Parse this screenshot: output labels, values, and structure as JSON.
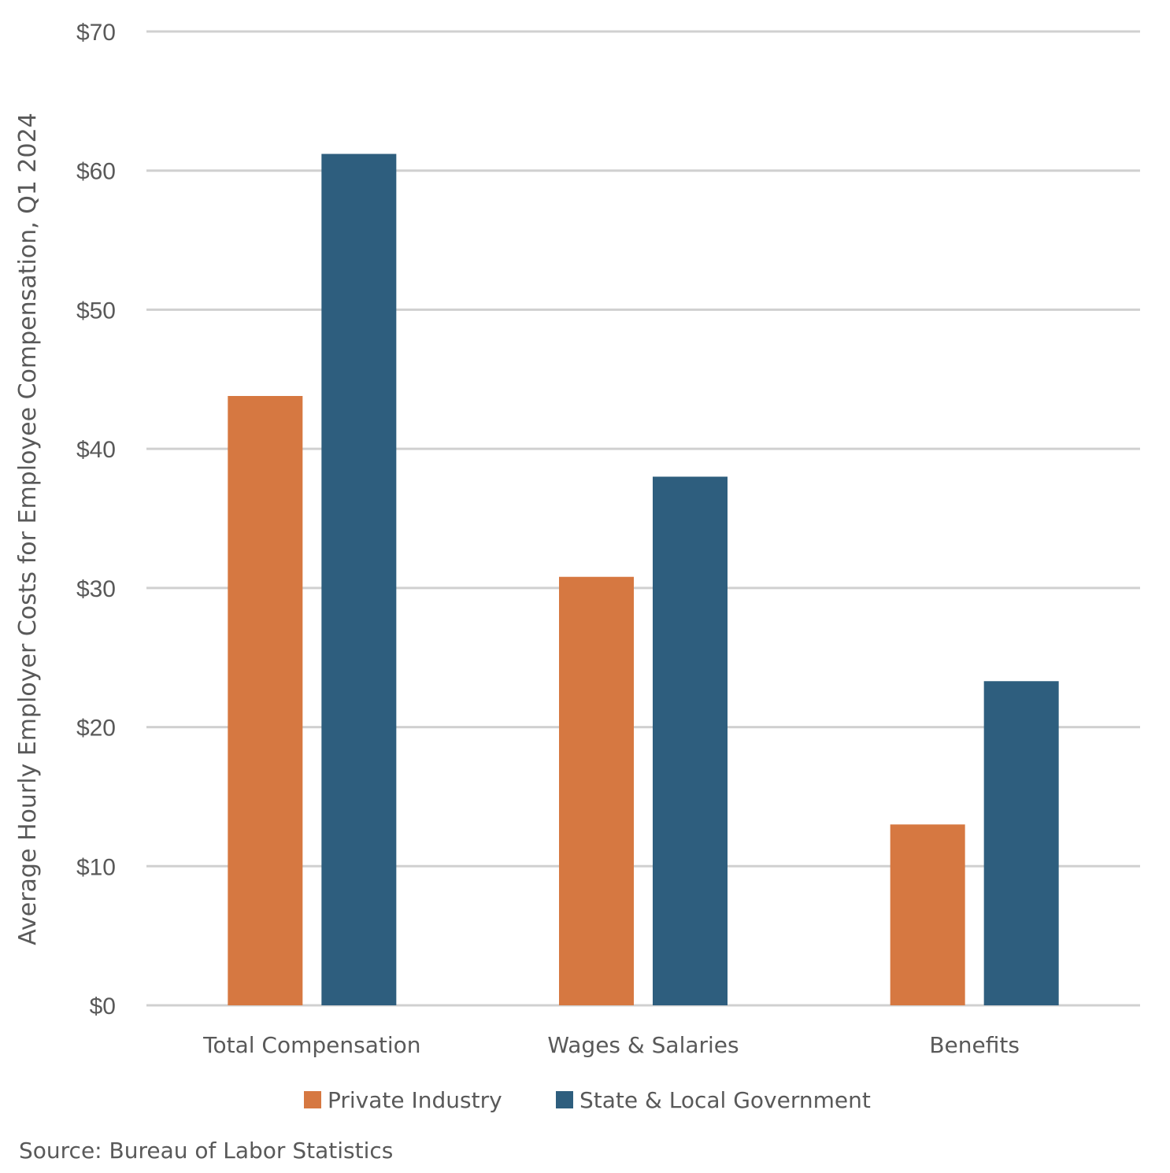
{
  "chart_data": {
    "type": "bar",
    "categories": [
      "Total Compensation",
      "Wages & Salaries",
      "Benefits"
    ],
    "series": [
      {
        "name": "Private Industry",
        "values": [
          43.8,
          30.8,
          13.0
        ],
        "color": "#D67841"
      },
      {
        "name": "State & Local Government",
        "values": [
          61.2,
          38.0,
          23.3
        ],
        "color": "#2E5E7E"
      }
    ],
    "ylabel": "Average Hourly Employer Costs for Employee Compensation, Q1 2024",
    "xlabel": "",
    "ylim": [
      0,
      70
    ],
    "yticks": [
      0,
      10,
      20,
      30,
      40,
      50,
      60,
      70
    ],
    "ytick_labels": [
      "$0",
      "$10",
      "$20",
      "$30",
      "$40",
      "$50",
      "$60",
      "$70"
    ],
    "grid": true,
    "legend_position": "bottom",
    "source": "Source: Bureau of Labor Statistics"
  },
  "colors": {
    "grid": "#D0D0D0",
    "text": "#595959"
  }
}
